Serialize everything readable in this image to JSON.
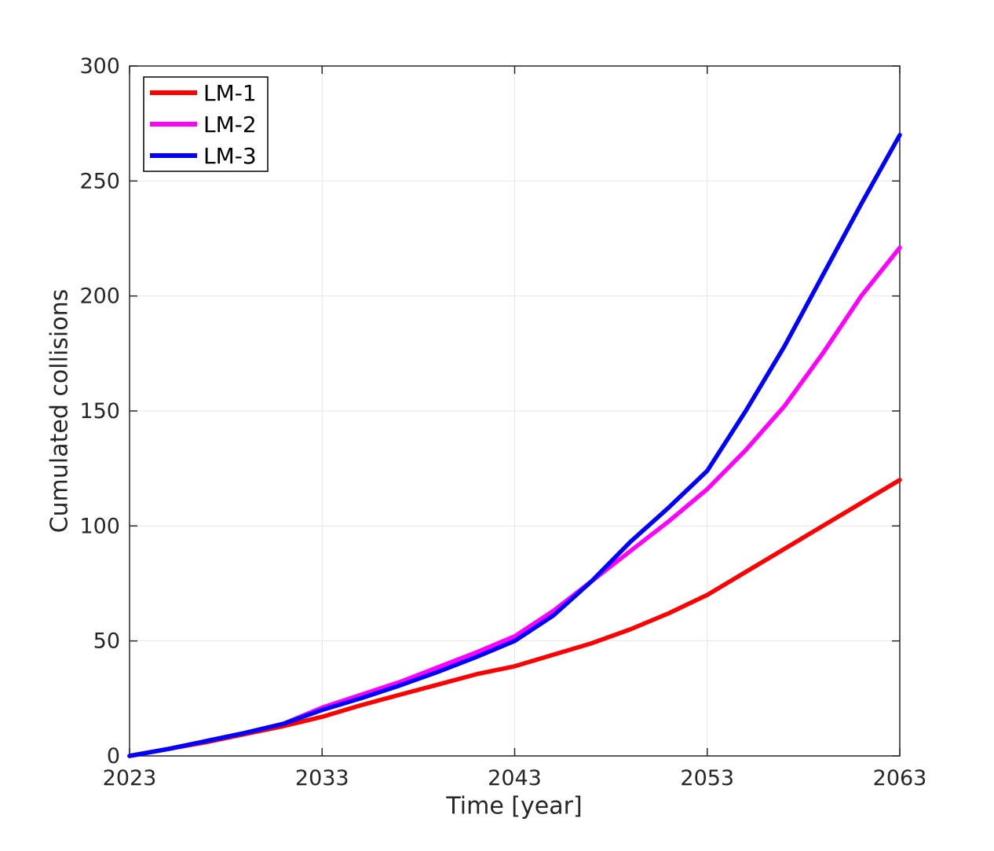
{
  "chart_data": {
    "type": "line",
    "title": "",
    "xlabel": "Time [year]",
    "ylabel": "Cumulated collisions",
    "xlim": [
      2023,
      2063
    ],
    "ylim": [
      0,
      300
    ],
    "xticks": [
      2023,
      2033,
      2043,
      2053,
      2063
    ],
    "yticks": [
      0,
      50,
      100,
      150,
      200,
      250,
      300
    ],
    "grid": true,
    "legend_position": "top-left",
    "axis_color": "#262626",
    "grid_color": "#e6e6e6",
    "x": [
      2023,
      2025,
      2027,
      2029,
      2031,
      2033,
      2035,
      2037,
      2039,
      2041,
      2043,
      2045,
      2047,
      2049,
      2051,
      2053,
      2055,
      2057,
      2059,
      2061,
      2063
    ],
    "series": [
      {
        "name": "LM-1",
        "color": "#ff0000",
        "values": [
          0,
          3,
          6,
          9.5,
          13,
          17,
          22,
          26.5,
          31,
          35.5,
          39,
          44,
          49,
          55,
          62,
          70,
          80,
          90,
          100,
          110,
          120
        ]
      },
      {
        "name": "LM-2",
        "color": "#ff00ff",
        "values": [
          0,
          3,
          6.5,
          10,
          14,
          21,
          26.5,
          32,
          38.5,
          45,
          52,
          63,
          76,
          89,
          102,
          116,
          133,
          152,
          175,
          200,
          221
        ]
      },
      {
        "name": "LM-3",
        "color": "#0000ff",
        "values": [
          0,
          3,
          6.5,
          10,
          14,
          20,
          25,
          30.5,
          36.5,
          43,
          50,
          61,
          76,
          93,
          108,
          124,
          150,
          178,
          209,
          240,
          270
        ]
      }
    ]
  }
}
